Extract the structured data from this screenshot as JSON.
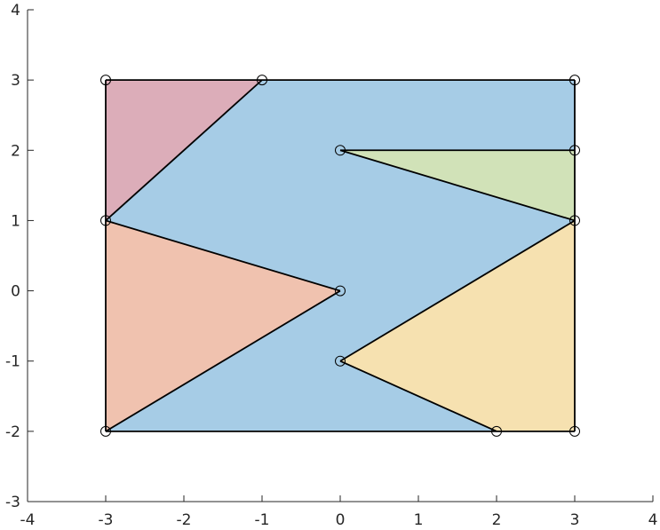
{
  "chart_data": {
    "type": "polygon-partition",
    "title": "",
    "xlabel": "",
    "ylabel": "",
    "xlim": [
      -4,
      4
    ],
    "ylim": [
      -3,
      4
    ],
    "xticks": [
      -4,
      -3,
      -2,
      -1,
      0,
      1,
      2,
      3,
      4
    ],
    "yticks": [
      -3,
      -2,
      -1,
      0,
      1,
      2,
      3,
      4
    ],
    "xtick_labels": [
      "-4",
      "-3",
      "-2",
      "-1",
      "0",
      "1",
      "2",
      "3",
      "4"
    ],
    "ytick_labels": [
      "-3",
      "-2",
      "-1",
      "0",
      "1",
      "2",
      "3",
      "4"
    ],
    "grid": false,
    "regions": [
      {
        "name": "blue-region",
        "color": "#a6cce6",
        "vertices": [
          [
            -3,
            -2
          ],
          [
            2,
            -2
          ],
          [
            0,
            -1
          ],
          [
            3,
            1
          ],
          [
            0,
            2
          ],
          [
            3,
            2
          ],
          [
            3,
            3
          ],
          [
            -1,
            3
          ],
          [
            -3,
            1
          ],
          [
            0,
            0
          ]
        ]
      },
      {
        "name": "pink-region",
        "color": "#dcadb9",
        "vertices": [
          [
            -3,
            1
          ],
          [
            -3,
            3
          ],
          [
            -1,
            3
          ]
        ]
      },
      {
        "name": "green-region",
        "color": "#d1e2b8",
        "vertices": [
          [
            0,
            2
          ],
          [
            3,
            2
          ],
          [
            3,
            1
          ]
        ]
      },
      {
        "name": "salmon-region",
        "color": "#f0c2af",
        "vertices": [
          [
            -3,
            1
          ],
          [
            0,
            0
          ],
          [
            -3,
            -2
          ]
        ]
      },
      {
        "name": "yellow-region",
        "color": "#f6e1b0",
        "vertices": [
          [
            0,
            -1
          ],
          [
            3,
            1
          ],
          [
            3,
            -2
          ],
          [
            2,
            -2
          ]
        ]
      }
    ],
    "edges": [
      [
        [
          -3,
          -2
        ],
        [
          -3,
          3
        ]
      ],
      [
        [
          -3,
          3
        ],
        [
          3,
          3
        ]
      ],
      [
        [
          3,
          3
        ],
        [
          3,
          -2
        ]
      ],
      [
        [
          3,
          -2
        ],
        [
          -3,
          -2
        ]
      ],
      [
        [
          -3,
          1
        ],
        [
          -1,
          3
        ]
      ],
      [
        [
          -3,
          1
        ],
        [
          0,
          0
        ]
      ],
      [
        [
          0,
          0
        ],
        [
          -3,
          -2
        ]
      ],
      [
        [
          0,
          2
        ],
        [
          3,
          2
        ]
      ],
      [
        [
          0,
          2
        ],
        [
          3,
          1
        ]
      ],
      [
        [
          3,
          1
        ],
        [
          0,
          -1
        ]
      ],
      [
        [
          0,
          -1
        ],
        [
          2,
          -2
        ]
      ]
    ],
    "vertices": [
      [
        -3,
        3
      ],
      [
        -1,
        3
      ],
      [
        3,
        3
      ],
      [
        0,
        2
      ],
      [
        3,
        2
      ],
      [
        -3,
        1
      ],
      [
        3,
        1
      ],
      [
        0,
        0
      ],
      [
        0,
        -1
      ],
      [
        -3,
        -2
      ],
      [
        2,
        -2
      ],
      [
        3,
        -2
      ]
    ]
  }
}
